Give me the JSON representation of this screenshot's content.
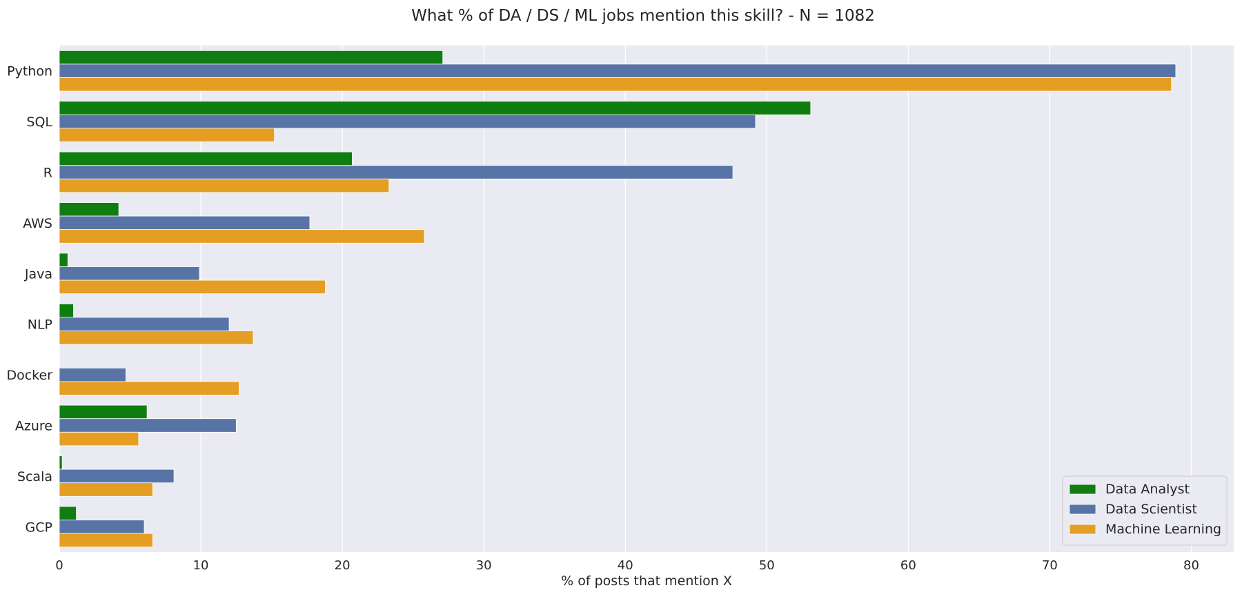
{
  "chart_data": {
    "type": "bar",
    "orientation": "horizontal",
    "title": "What % of DA / DS / ML jobs mention this skill? - N = 1082",
    "xlabel": "% of posts that mention X",
    "ylabel": "",
    "xlim": [
      0,
      83
    ],
    "xticks": [
      0,
      10,
      20,
      30,
      40,
      50,
      60,
      70,
      80
    ],
    "grid": true,
    "legend_position": "bottom-right",
    "categories": [
      "Python",
      "SQL",
      "R",
      "AWS",
      "Java",
      "NLP",
      "Docker",
      "Azure",
      "Scala",
      "GCP"
    ],
    "series": [
      {
        "name": "Data Analyst",
        "color": "#107d10",
        "values": [
          27.1,
          53.1,
          20.7,
          4.2,
          0.6,
          1.0,
          0.0,
          6.2,
          0.2,
          1.2
        ]
      },
      {
        "name": "Data Scientist",
        "color": "#5874a6",
        "values": [
          78.9,
          49.2,
          47.6,
          17.7,
          9.9,
          12.0,
          4.7,
          12.5,
          8.1,
          6.0
        ]
      },
      {
        "name": "Machine Learning",
        "color": "#e49e24",
        "values": [
          78.6,
          15.2,
          23.3,
          25.8,
          18.8,
          13.7,
          12.7,
          5.6,
          6.6,
          6.6
        ]
      }
    ]
  }
}
